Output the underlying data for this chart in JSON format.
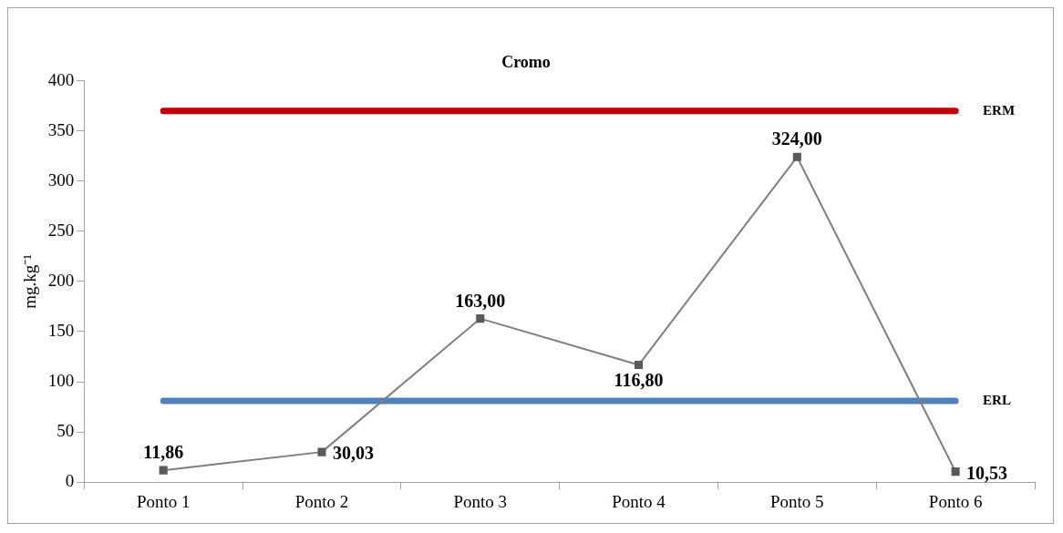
{
  "chart_data": {
    "type": "line",
    "title": "Cromo",
    "ylabel": "mg.kg⁻¹",
    "categories": [
      "Ponto 1",
      "Ponto 2",
      "Ponto 3",
      "Ponto 4",
      "Ponto 5",
      "Ponto 6"
    ],
    "series": [
      {
        "color": "#595959",
        "values": [
          11.86,
          30.03,
          163.0,
          116.8,
          324.0,
          10.53
        ]
      }
    ],
    "value_labels": [
      "11,86",
      "30,03",
      "163,00",
      "116,80",
      "324,00",
      "10,53"
    ],
    "ref_lines": [
      {
        "axis": "y",
        "value": 370,
        "label": "ERM",
        "color": "#c00000"
      },
      {
        "axis": "y",
        "value": 81,
        "label": "ERL",
        "color": "#4f81bd"
      }
    ],
    "ylim": [
      0,
      400
    ],
    "yticks": [
      0,
      50,
      100,
      150,
      200,
      250,
      300,
      350,
      400
    ],
    "grid": false,
    "legend": false,
    "marker": "square",
    "line_style": "solid"
  }
}
